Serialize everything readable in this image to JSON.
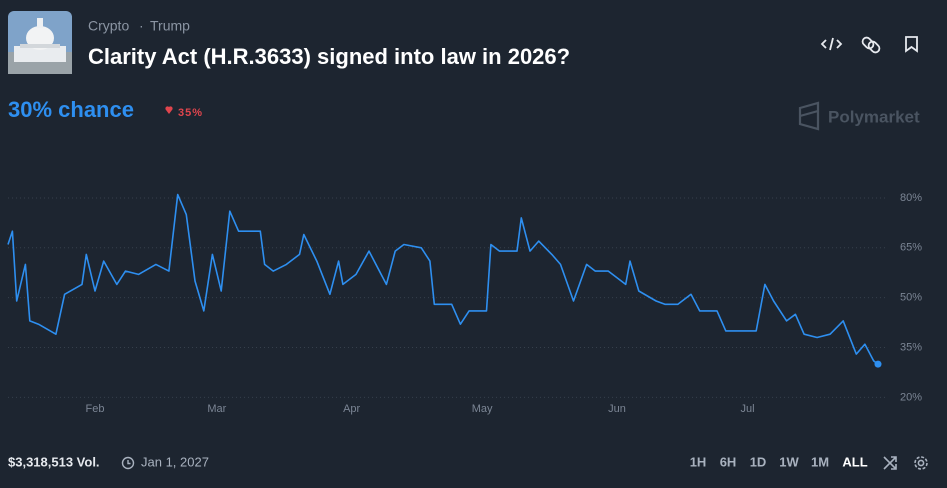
{
  "header": {
    "tags": [
      "Crypto",
      "Trump"
    ],
    "title": "Clarity Act (H.R.3633) signed into law in 2026?"
  },
  "odds": {
    "chance": "30% chance",
    "change": "35%"
  },
  "brand": "Polymarket",
  "chart_data": {
    "type": "line",
    "color": "#2e8ff0",
    "grid": true,
    "x": [
      0,
      1,
      2,
      4,
      5,
      7,
      11,
      13,
      17,
      18,
      20,
      22,
      25,
      27,
      30,
      34,
      37,
      39,
      41,
      43,
      45,
      47,
      49,
      51,
      53,
      58,
      59,
      61,
      64,
      67,
      68,
      71,
      74,
      76,
      77,
      80,
      83,
      87,
      89,
      91,
      95,
      97,
      98,
      102,
      104,
      106,
      110,
      111,
      113,
      117,
      118,
      120,
      122,
      125,
      127,
      130,
      133,
      135,
      138,
      142,
      143,
      145,
      149,
      151,
      154,
      157,
      159,
      163,
      165,
      168,
      172,
      174,
      176,
      179,
      181,
      183,
      186,
      189,
      192,
      195,
      197,
      199,
      200
    ],
    "values": [
      66,
      70,
      49,
      60,
      43,
      42,
      39,
      51,
      54,
      63,
      52,
      61,
      54,
      58,
      57,
      60,
      58,
      81,
      75,
      55,
      46,
      63,
      52,
      76,
      70,
      70,
      60,
      58,
      60,
      63,
      69,
      61,
      51,
      61,
      54,
      57,
      64,
      54,
      64,
      66,
      65,
      61,
      48,
      48,
      42,
      46,
      46,
      66,
      64,
      64,
      74,
      64,
      67,
      63,
      60,
      49,
      60,
      58,
      58,
      54,
      61,
      52,
      49,
      48,
      48,
      51,
      46,
      46,
      40,
      40,
      40,
      54,
      49,
      43,
      45,
      39,
      38,
      39,
      43,
      33,
      36,
      31,
      30
    ],
    "xlim": [
      0,
      200
    ],
    "ylim": [
      18,
      86
    ],
    "xticks": [
      {
        "value": 20,
        "label": "Feb"
      },
      {
        "value": 48,
        "label": "Mar"
      },
      {
        "value": 79,
        "label": "Apr"
      },
      {
        "value": 109,
        "label": "May"
      },
      {
        "value": 140,
        "label": "Jun"
      },
      {
        "value": 170,
        "label": "Jul"
      }
    ],
    "yticks": [
      {
        "value": 20,
        "label": "20%"
      },
      {
        "value": 35,
        "label": "35%"
      },
      {
        "value": 50,
        "label": "50%"
      },
      {
        "value": 65,
        "label": "65%"
      },
      {
        "value": 80,
        "label": "80%"
      }
    ]
  },
  "footer": {
    "volume": "$3,318,513 Vol.",
    "end_date": "Jan 1, 2027",
    "ranges": [
      "1H",
      "6H",
      "1D",
      "1W",
      "1M",
      "ALL"
    ]
  }
}
